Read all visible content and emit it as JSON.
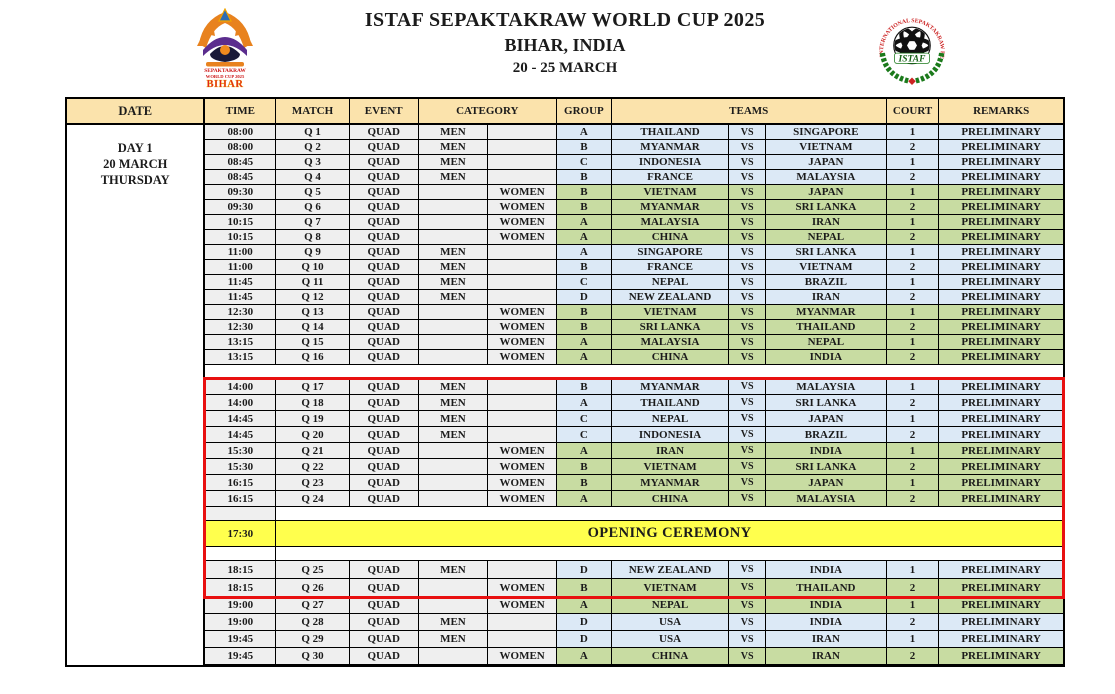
{
  "header": {
    "title1": "ISTAF SEPAKTAKRAW WORLD CUP 2025",
    "title2": "BIHAR, INDIA",
    "title3": "20 - 25 MARCH"
  },
  "logos": {
    "left": {
      "line1": "SEPAKTAKRAW",
      "line2": "WORLD CUP 2025",
      "line3": "BIHAR"
    },
    "right": {
      "arc_text": "INTERNATIONAL  SEPAKTAKRAW  FEDERATION",
      "label": "ISTAF"
    }
  },
  "table": {
    "columns": [
      "DATE",
      "TIME",
      "MATCH",
      "EVENT",
      "CATEGORY",
      "GROUP",
      "TEAMS",
      "COURT",
      "REMARKS"
    ],
    "day": {
      "line1": "DAY 1",
      "line2": "20 MARCH",
      "line3": "THURSDAY"
    },
    "vs_label": "VS",
    "ceremony": {
      "time": "17:30",
      "label": "OPENING CEREMONY"
    },
    "matches": [
      {
        "time": "08:00",
        "match": "Q 1",
        "event": "QUAD",
        "category": "MEN",
        "group": "A",
        "team1": "THAILAND",
        "team2": "SINGAPORE",
        "court": "1",
        "remarks": "PRELIMINARY"
      },
      {
        "time": "08:00",
        "match": "Q 2",
        "event": "QUAD",
        "category": "MEN",
        "group": "B",
        "team1": "MYANMAR",
        "team2": "VIETNAM",
        "court": "2",
        "remarks": "PRELIMINARY"
      },
      {
        "time": "08:45",
        "match": "Q 3",
        "event": "QUAD",
        "category": "MEN",
        "group": "C",
        "team1": "INDONESIA",
        "team2": "JAPAN",
        "court": "1",
        "remarks": "PRELIMINARY"
      },
      {
        "time": "08:45",
        "match": "Q 4",
        "event": "QUAD",
        "category": "MEN",
        "group": "B",
        "team1": "FRANCE",
        "team2": "MALAYSIA",
        "court": "2",
        "remarks": "PRELIMINARY"
      },
      {
        "time": "09:30",
        "match": "Q 5",
        "event": "QUAD",
        "category": "WOMEN",
        "group": "B",
        "team1": "VIETNAM",
        "team2": "JAPAN",
        "court": "1",
        "remarks": "PRELIMINARY"
      },
      {
        "time": "09:30",
        "match": "Q 6",
        "event": "QUAD",
        "category": "WOMEN",
        "group": "B",
        "team1": "MYANMAR",
        "team2": "SRI LANKA",
        "court": "2",
        "remarks": "PRELIMINARY"
      },
      {
        "time": "10:15",
        "match": "Q 7",
        "event": "QUAD",
        "category": "WOMEN",
        "group": "A",
        "team1": "MALAYSIA",
        "team2": "IRAN",
        "court": "1",
        "remarks": "PRELIMINARY"
      },
      {
        "time": "10:15",
        "match": "Q 8",
        "event": "QUAD",
        "category": "WOMEN",
        "group": "A",
        "team1": "CHINA",
        "team2": "NEPAL",
        "court": "2",
        "remarks": "PRELIMINARY"
      },
      {
        "time": "11:00",
        "match": "Q 9",
        "event": "QUAD",
        "category": "MEN",
        "group": "A",
        "team1": "SINGAPORE",
        "team2": "SRI LANKA",
        "court": "1",
        "remarks": "PRELIMINARY"
      },
      {
        "time": "11:00",
        "match": "Q 10",
        "event": "QUAD",
        "category": "MEN",
        "group": "B",
        "team1": "FRANCE",
        "team2": "VIETNAM",
        "court": "2",
        "remarks": "PRELIMINARY"
      },
      {
        "time": "11:45",
        "match": "Q 11",
        "event": "QUAD",
        "category": "MEN",
        "group": "C",
        "team1": "NEPAL",
        "team2": "BRAZIL",
        "court": "1",
        "remarks": "PRELIMINARY"
      },
      {
        "time": "11:45",
        "match": "Q 12",
        "event": "QUAD",
        "category": "MEN",
        "group": "D",
        "team1": "NEW ZEALAND",
        "team2": "IRAN",
        "court": "2",
        "remarks": "PRELIMINARY"
      },
      {
        "time": "12:30",
        "match": "Q 13",
        "event": "QUAD",
        "category": "WOMEN",
        "group": "B",
        "team1": "VIETNAM",
        "team2": "MYANMAR",
        "court": "1",
        "remarks": "PRELIMINARY"
      },
      {
        "time": "12:30",
        "match": "Q 14",
        "event": "QUAD",
        "category": "WOMEN",
        "group": "B",
        "team1": "SRI LANKA",
        "team2": "THAILAND",
        "court": "2",
        "remarks": "PRELIMINARY"
      },
      {
        "time": "13:15",
        "match": "Q 15",
        "event": "QUAD",
        "category": "WOMEN",
        "group": "A",
        "team1": "MALAYSIA",
        "team2": "NEPAL",
        "court": "1",
        "remarks": "PRELIMINARY"
      },
      {
        "time": "13:15",
        "match": "Q 16",
        "event": "QUAD",
        "category": "WOMEN",
        "group": "A",
        "team1": "CHINA",
        "team2": "INDIA",
        "court": "2",
        "remarks": "PRELIMINARY"
      },
      {
        "time": "14:00",
        "match": "Q 17",
        "event": "QUAD",
        "category": "MEN",
        "group": "B",
        "team1": "MYANMAR",
        "team2": "MALAYSIA",
        "court": "1",
        "remarks": "PRELIMINARY"
      },
      {
        "time": "14:00",
        "match": "Q 18",
        "event": "QUAD",
        "category": "MEN",
        "group": "A",
        "team1": "THAILAND",
        "team2": "SRI LANKA",
        "court": "2",
        "remarks": "PRELIMINARY"
      },
      {
        "time": "14:45",
        "match": "Q 19",
        "event": "QUAD",
        "category": "MEN",
        "group": "C",
        "team1": "NEPAL",
        "team2": "JAPAN",
        "court": "1",
        "remarks": "PRELIMINARY"
      },
      {
        "time": "14:45",
        "match": "Q 20",
        "event": "QUAD",
        "category": "MEN",
        "group": "C",
        "team1": "INDONESIA",
        "team2": "BRAZIL",
        "court": "2",
        "remarks": "PRELIMINARY"
      },
      {
        "time": "15:30",
        "match": "Q 21",
        "event": "QUAD",
        "category": "WOMEN",
        "group": "A",
        "team1": "IRAN",
        "team2": "INDIA",
        "court": "1",
        "remarks": "PRELIMINARY"
      },
      {
        "time": "15:30",
        "match": "Q 22",
        "event": "QUAD",
        "category": "WOMEN",
        "group": "B",
        "team1": "VIETNAM",
        "team2": "SRI LANKA",
        "court": "2",
        "remarks": "PRELIMINARY"
      },
      {
        "time": "16:15",
        "match": "Q 23",
        "event": "QUAD",
        "category": "WOMEN",
        "group": "B",
        "team1": "MYANMAR",
        "team2": "JAPAN",
        "court": "1",
        "remarks": "PRELIMINARY"
      },
      {
        "time": "16:15",
        "match": "Q 24",
        "event": "QUAD",
        "category": "WOMEN",
        "group": "A",
        "team1": "CHINA",
        "team2": "MALAYSIA",
        "court": "2",
        "remarks": "PRELIMINARY"
      },
      {
        "time": "18:15",
        "match": "Q 25",
        "event": "QUAD",
        "category": "MEN",
        "group": "D",
        "team1": "NEW ZEALAND",
        "team2": "INDIA",
        "court": "1",
        "remarks": "PRELIMINARY"
      },
      {
        "time": "18:15",
        "match": "Q 26",
        "event": "QUAD",
        "category": "WOMEN",
        "group": "B",
        "team1": "VIETNAM",
        "team2": "THAILAND",
        "court": "2",
        "remarks": "PRELIMINARY"
      },
      {
        "time": "19:00",
        "match": "Q 27",
        "event": "QUAD",
        "category": "WOMEN",
        "group": "A",
        "team1": "NEPAL",
        "team2": "INDIA",
        "court": "1",
        "remarks": "PRELIMINARY"
      },
      {
        "time": "19:00",
        "match": "Q 28",
        "event": "QUAD",
        "category": "MEN",
        "group": "D",
        "team1": "USA",
        "team2": "INDIA",
        "court": "2",
        "remarks": "PRELIMINARY"
      },
      {
        "time": "19:45",
        "match": "Q 29",
        "event": "QUAD",
        "category": "MEN",
        "group": "D",
        "team1": "USA",
        "team2": "IRAN",
        "court": "1",
        "remarks": "PRELIMINARY"
      },
      {
        "time": "19:45",
        "match": "Q 30",
        "event": "QUAD",
        "category": "WOMEN",
        "group": "A",
        "team1": "CHINA",
        "team2": "IRAN",
        "court": "2",
        "remarks": "PRELIMINARY"
      }
    ]
  },
  "colors": {
    "header_bg": "#FBE3AC",
    "men_row_bg": "#DCE9F6",
    "women_row_bg": "#C8DCA2",
    "neutral_cell_bg": "#EFEFEF",
    "ceremony_bg": "#FFFF4D",
    "highlight_border": "#E81010",
    "table_border": "#000000"
  }
}
